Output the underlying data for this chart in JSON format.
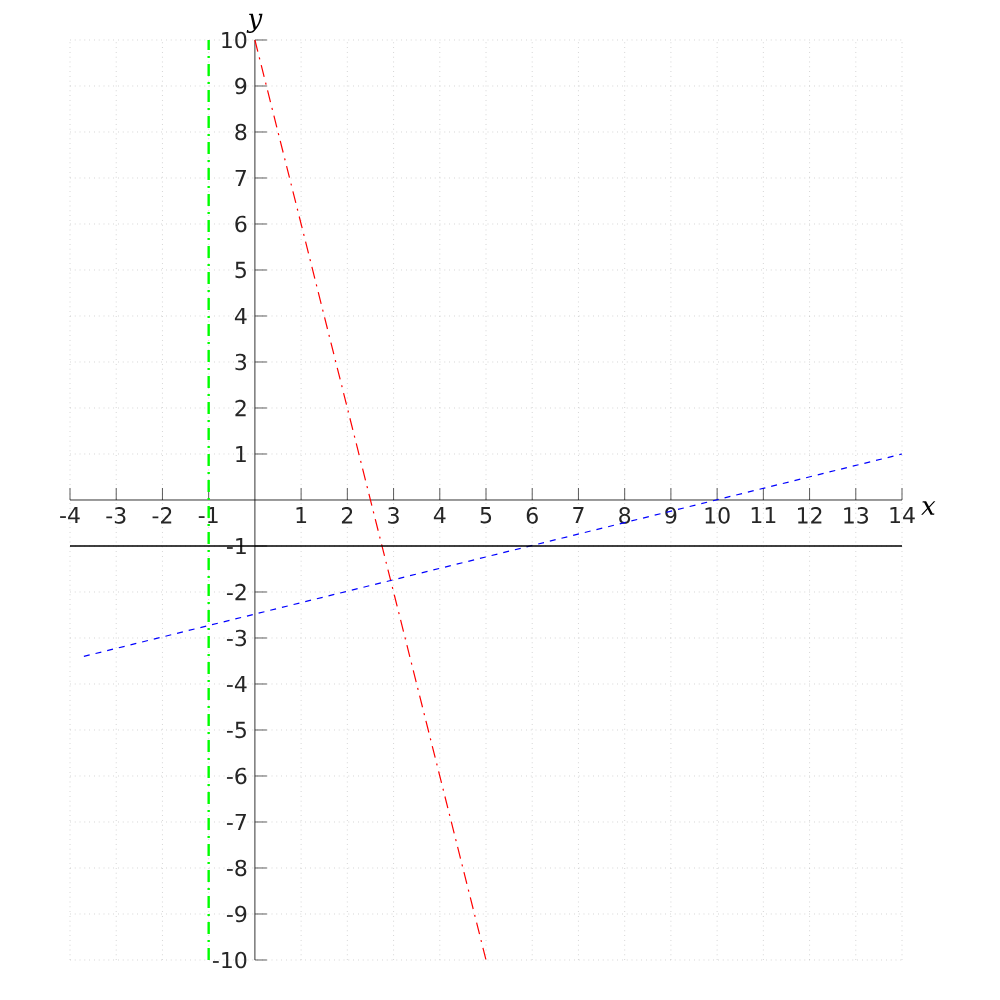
{
  "chart_data": {
    "type": "line",
    "xlabel": "x",
    "ylabel": "y",
    "xlim": [
      -4,
      14
    ],
    "ylim": [
      -10,
      10
    ],
    "xticks": [
      -4,
      -3,
      -2,
      -1,
      1,
      2,
      3,
      4,
      5,
      6,
      7,
      8,
      9,
      10,
      11,
      12,
      13,
      14
    ],
    "yticks": [
      -10,
      -9,
      -8,
      -7,
      -6,
      -5,
      -4,
      -3,
      -2,
      -1,
      1,
      2,
      3,
      4,
      5,
      6,
      7,
      8,
      9,
      10
    ],
    "grid": true,
    "marker": "none",
    "series": [
      {
        "color": "#ff0000",
        "line_style": "dashdot",
        "x": [
          0,
          5
        ],
        "values": [
          10,
          -10
        ]
      },
      {
        "color": "#0000ff",
        "line_style": "dashed",
        "x": [
          -3.7,
          14
        ],
        "values": [
          -3.4,
          1
        ]
      },
      {
        "color": "#00ff00",
        "line_style": "dashdot",
        "x": [
          -1,
          -1
        ],
        "values": [
          -10,
          10
        ]
      },
      {
        "color": "#000000",
        "line_style": "solid",
        "x": [
          -4,
          14
        ],
        "values": [
          -1,
          -1
        ]
      }
    ]
  }
}
